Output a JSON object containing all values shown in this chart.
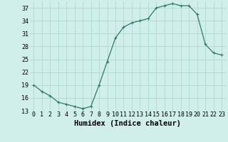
{
  "x": [
    0,
    1,
    2,
    3,
    4,
    5,
    6,
    7,
    8,
    9,
    10,
    11,
    12,
    13,
    14,
    15,
    16,
    17,
    18,
    19,
    20,
    21,
    22,
    23
  ],
  "y": [
    19,
    17.5,
    16.5,
    15,
    14.5,
    14,
    13.5,
    14,
    19,
    24.5,
    30,
    32.5,
    33.5,
    34,
    34.5,
    37,
    37.5,
    38,
    37.5,
    37.5,
    35.5,
    28.5,
    26.5,
    26
  ],
  "line_color": "#2d7a6a",
  "marker": "+",
  "marker_size": 3.5,
  "background_color": "#d0eeea",
  "grid_color": "#aad4cc",
  "xlabel": "Humidex (Indice chaleur)",
  "xlim": [
    -0.5,
    23.5
  ],
  "ylim": [
    13,
    38.5
  ],
  "yticks": [
    13,
    16,
    19,
    22,
    25,
    28,
    31,
    34,
    37
  ],
  "xtick_labels": [
    "0",
    "1",
    "2",
    "3",
    "4",
    "5",
    "6",
    "7",
    "8",
    "9",
    "10",
    "11",
    "12",
    "13",
    "14",
    "15",
    "16",
    "17",
    "18",
    "19",
    "20",
    "21",
    "22",
    "23"
  ],
  "fontsize_tick": 6.0,
  "fontsize_xlabel": 7.5,
  "marker_linewidth": 0.8,
  "line_width": 0.9
}
